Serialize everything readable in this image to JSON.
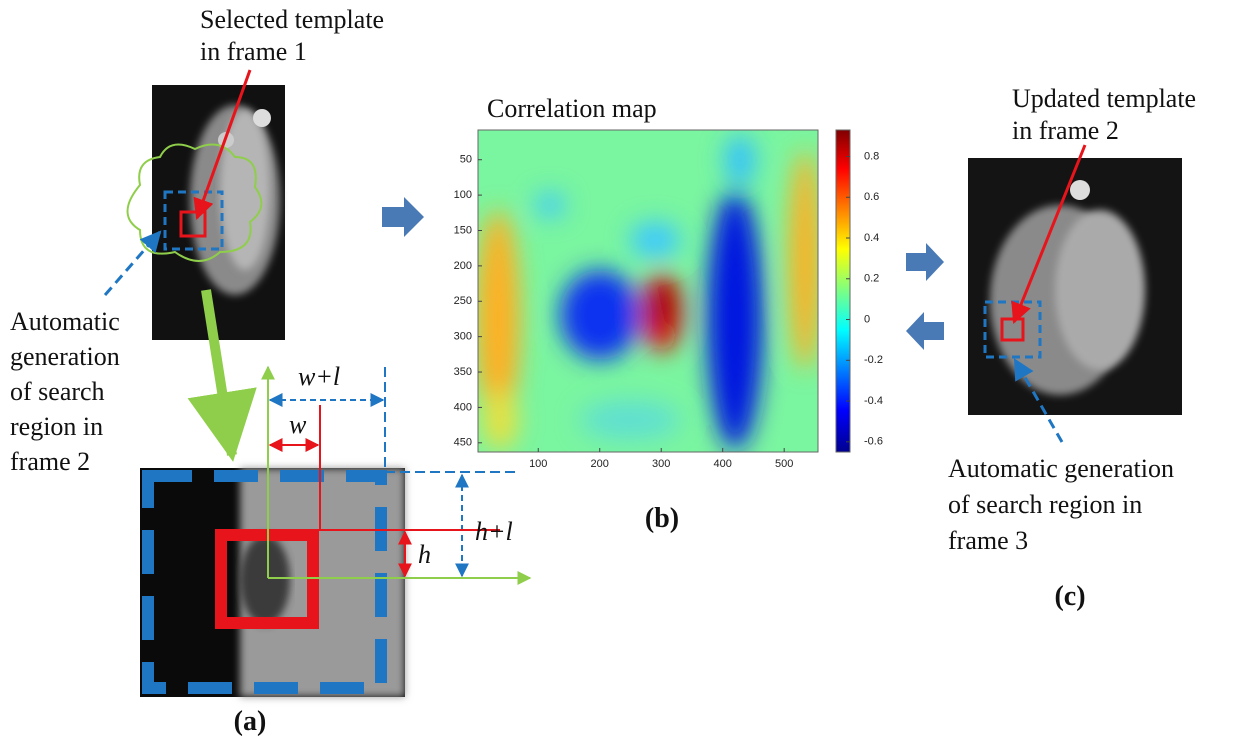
{
  "panel_a": {
    "template_label": [
      "Selected template",
      "in frame 1"
    ],
    "search_label": [
      "Automatic",
      "generation",
      "of search",
      "region in",
      "frame 2"
    ],
    "dims": {
      "w_plus_l": "w+l",
      "w": "w",
      "h_plus_l": "h+l",
      "h": "h"
    },
    "caption": "(a)"
  },
  "panel_b": {
    "title": "Correlation map",
    "xlim": [
      2,
      555
    ],
    "xticks": [
      100,
      200,
      300,
      400,
      500
    ],
    "ylim": [
      8,
      463
    ],
    "yticks": [
      50,
      100,
      150,
      200,
      250,
      300,
      350,
      400,
      450
    ],
    "colorbar": {
      "lim": [
        -0.65,
        0.93
      ],
      "ticks": [
        0.8,
        0.6,
        0.4,
        0.2,
        0,
        -0.2,
        -0.4,
        -0.6
      ]
    },
    "caption": "(b)"
  },
  "panel_c": {
    "template_label": [
      "Updated template",
      "in frame 2"
    ],
    "search_label": [
      "Automatic generation",
      "of search region in",
      "frame 3"
    ],
    "caption": "(c)"
  }
}
